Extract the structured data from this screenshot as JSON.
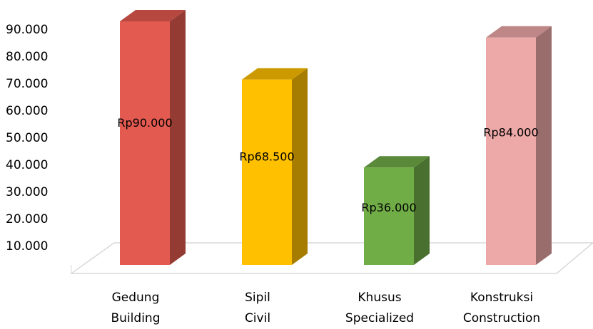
{
  "chart_data": {
    "type": "bar3d",
    "categories": [
      [
        "Gedung",
        "Building"
      ],
      [
        "Sipil",
        "Civil"
      ],
      [
        "Khusus",
        "Specialized"
      ],
      [
        "Konstruksi",
        "Construction"
      ]
    ],
    "values": [
      90000,
      68500,
      36000,
      84000
    ],
    "value_labels": [
      "Rp90.000",
      "Rp68.500",
      "Rp36.000",
      "Rp84.000"
    ],
    "colors": [
      "#e35a50",
      "#ffc000",
      "#70ad47",
      "#eda8a8"
    ],
    "ylim": [
      0,
      90000
    ],
    "yticks": [
      {
        "value": 10000,
        "label": "10.000"
      },
      {
        "value": 20000,
        "label": "20.000"
      },
      {
        "value": 30000,
        "label": "30.000"
      },
      {
        "value": 40000,
        "label": "40.000"
      },
      {
        "value": 50000,
        "label": "50.000"
      },
      {
        "value": 60000,
        "label": "60.000"
      },
      {
        "value": 70000,
        "label": "70.000"
      },
      {
        "value": 80000,
        "label": "80.000"
      },
      {
        "value": 90000,
        "label": "90.000"
      }
    ]
  }
}
